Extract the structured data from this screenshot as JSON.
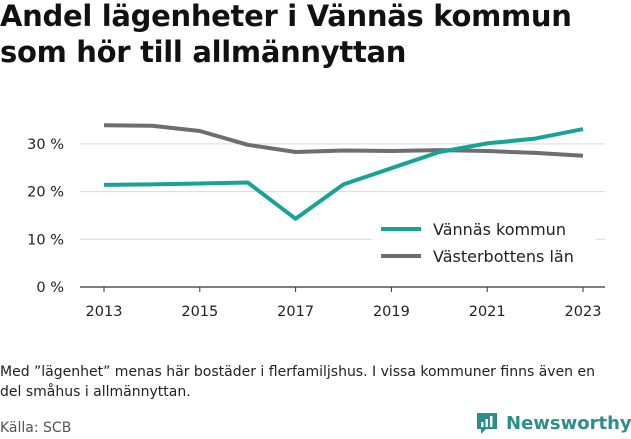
{
  "title": "Andel lägenheter i Vännäs kommun som hör till allmännyttan",
  "footnote": "Med ”lägenhet” menas här bostäder i flerfamiljshus. I vissa kommuner finns även en del småhus i allmännyttan.",
  "source": "Källa: SCB",
  "brand": {
    "name": "Newsworthy",
    "icon": "newsworthy-logo-icon",
    "color": "#2a8f8a"
  },
  "chart_data": {
    "type": "line",
    "x": [
      2013,
      2014,
      2015,
      2016,
      2017,
      2018,
      2019,
      2020,
      2021,
      2022,
      2023
    ],
    "x_ticks": [
      "2013",
      "2015",
      "2017",
      "2019",
      "2021",
      "2023"
    ],
    "y_ticks": [
      "0 %",
      "10 %",
      "20 %",
      "30 %"
    ],
    "ylim": [
      0,
      35
    ],
    "grid": "horizontal",
    "legend_position": "bottom-right",
    "series": [
      {
        "name": "Vännäs kommun",
        "color": "#17a398",
        "values": [
          21.4,
          21.5,
          21.7,
          21.9,
          14.3,
          21.5,
          24.9,
          28.3,
          30.1,
          31.1,
          33.1
        ]
      },
      {
        "name": "Västerbottens län",
        "color": "#6d6d72",
        "values": [
          33.9,
          33.8,
          32.7,
          29.8,
          28.3,
          28.6,
          28.5,
          28.7,
          28.5,
          28.1,
          27.5
        ]
      }
    ]
  }
}
